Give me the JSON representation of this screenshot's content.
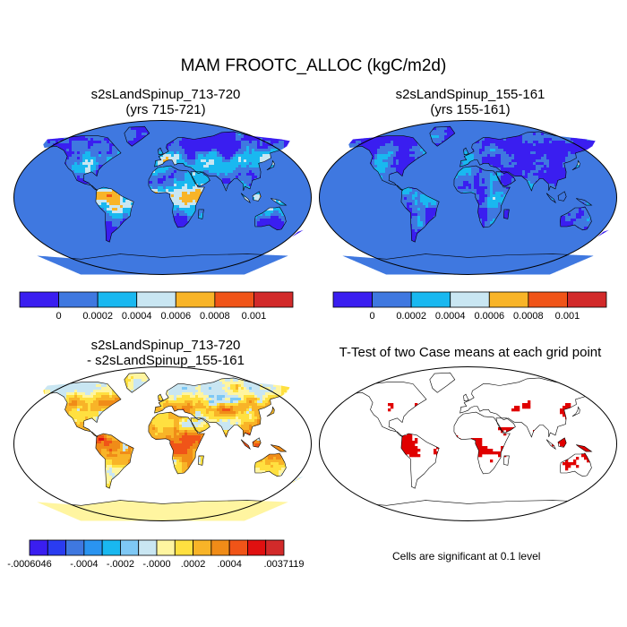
{
  "title": "MAM FROOTC_ALLOC (kgC/m2d)",
  "panels": [
    {
      "id": "case1",
      "title_line1": "s2sLandSpinup_713-720",
      "title_line2": "(yrs 715-721)",
      "palette": "absolute",
      "land_level": 0.55
    },
    {
      "id": "case2",
      "title_line1": "s2sLandSpinup_155-161",
      "title_line2": "(yrs 155-161)",
      "palette": "absolute",
      "land_level": 0.3
    },
    {
      "id": "diff",
      "title_line1": "s2sLandSpinup_713-720",
      "title_line2": "- s2sLandSpinup_155-161",
      "palette": "difference",
      "land_level": 0.6
    },
    {
      "id": "ttest",
      "title_line1": "T-Test of two Case means at each grid point",
      "title_line2": "",
      "palette": "significance",
      "land_level": 0.5
    }
  ],
  "colorbar_absolute": {
    "colors": [
      "#3a1ef0",
      "#3f78e0",
      "#19b8f0",
      "#c9e6f2",
      "#f8b428",
      "#f05418",
      "#d22a2a"
    ],
    "labels": [
      "0",
      "0.0002",
      "0.0004",
      "0.0006",
      "0.0008",
      "0.001"
    ]
  },
  "colorbar_difference": {
    "colors": [
      "#3a1ef0",
      "#2a3cf0",
      "#3f78e0",
      "#2a94f0",
      "#19b8f0",
      "#7ec8f5",
      "#c9e6f2",
      "#fff5a0",
      "#ffe040",
      "#f8b428",
      "#f08c18",
      "#f05418",
      "#e01010",
      "#d22a2a"
    ],
    "labels": [
      "-.0006046",
      "-.0004",
      "-.0002",
      "-.0000",
      ".0002",
      ".0004",
      ".0037119"
    ]
  },
  "significance_note": "Cells are significant at 0.1 level",
  "colors": {
    "ocean_absolute": "#3f78e0",
    "land_significant": "#e00000",
    "outline": "#000000"
  }
}
